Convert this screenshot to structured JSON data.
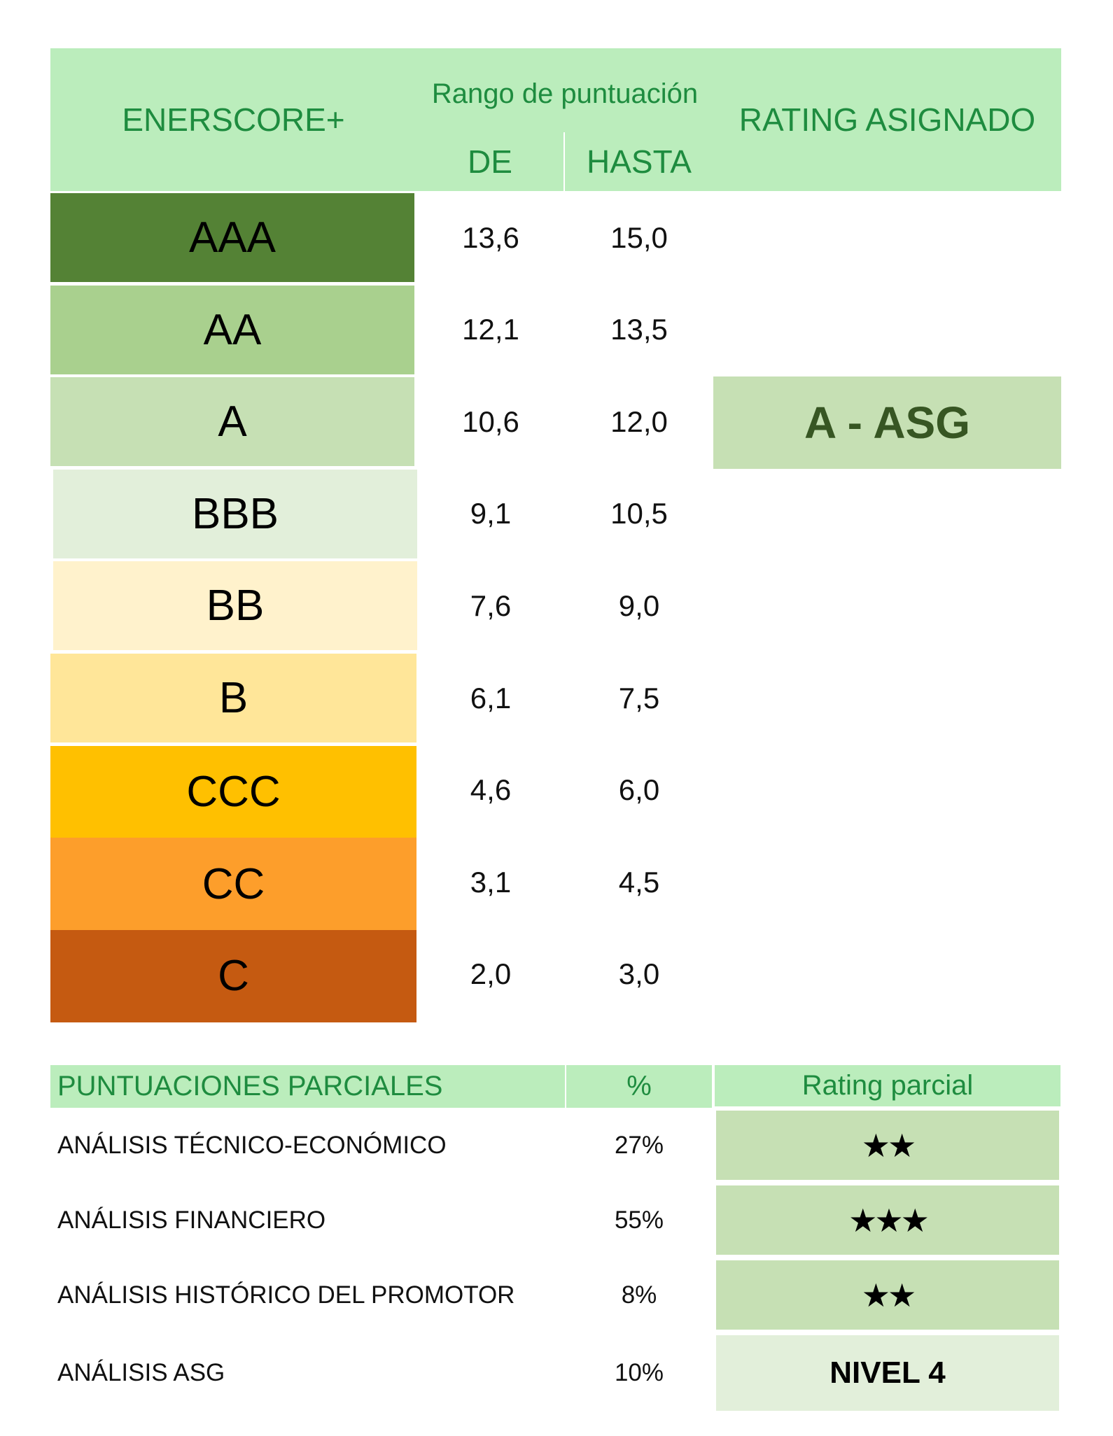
{
  "header": {
    "enerscore": "ENERSCORE+",
    "range_title": "Rango de puntuación",
    "from": "DE",
    "to": "HASTA",
    "rating": "RATING ASIGNADO"
  },
  "grades": [
    {
      "label": "AAA",
      "from": "13,6",
      "to": "15,0",
      "color": "#548235"
    },
    {
      "label": "AA",
      "from": "12,1",
      "to": "13,5",
      "color": "#a9d08e"
    },
    {
      "label": "A",
      "from": "10,6",
      "to": "12,0",
      "color": "#c6e0b4"
    },
    {
      "label": "BBB",
      "from": "9,1",
      "to": "10,5",
      "color": "#e2efda"
    },
    {
      "label": "BB",
      "from": "7,6",
      "to": "9,0",
      "color": "#fff2cc"
    },
    {
      "label": "B",
      "from": "6,1",
      "to": "7,5",
      "color": "#ffe699"
    },
    {
      "label": "CCC",
      "from": "4,6",
      "to": "6,0",
      "color": "#ffc000"
    },
    {
      "label": "CC",
      "from": "3,1",
      "to": "4,5",
      "color": "#fd9e2b"
    },
    {
      "label": "C",
      "from": "2,0",
      "to": "3,0",
      "color": "#c55a11"
    }
  ],
  "assigned": {
    "value": "A - ASG",
    "color": "#c6e0b4",
    "text_color": "#375623"
  },
  "partial": {
    "title": "PUNTUACIONES PARCIALES",
    "pct_header": "%",
    "rating_header": "Rating parcial",
    "rows": [
      {
        "label": "ANÁLISIS TÉCNICO-ECONÓMICO",
        "pct": "27%",
        "rating": "★★",
        "stars": 2,
        "color": "#c6e0b4"
      },
      {
        "label": "ANÁLISIS FINANCIERO",
        "pct": "55%",
        "rating": "★★★",
        "stars": 3,
        "color": "#c6e0b4"
      },
      {
        "label": "ANÁLISIS HISTÓRICO DEL PROMOTOR",
        "pct": "8%",
        "rating": "★★",
        "stars": 2,
        "color": "#c6e0b4"
      },
      {
        "label": "ANÁLISIS ASG",
        "pct": "10%",
        "rating": "NIVEL 4",
        "color": "#e2efda"
      }
    ]
  }
}
